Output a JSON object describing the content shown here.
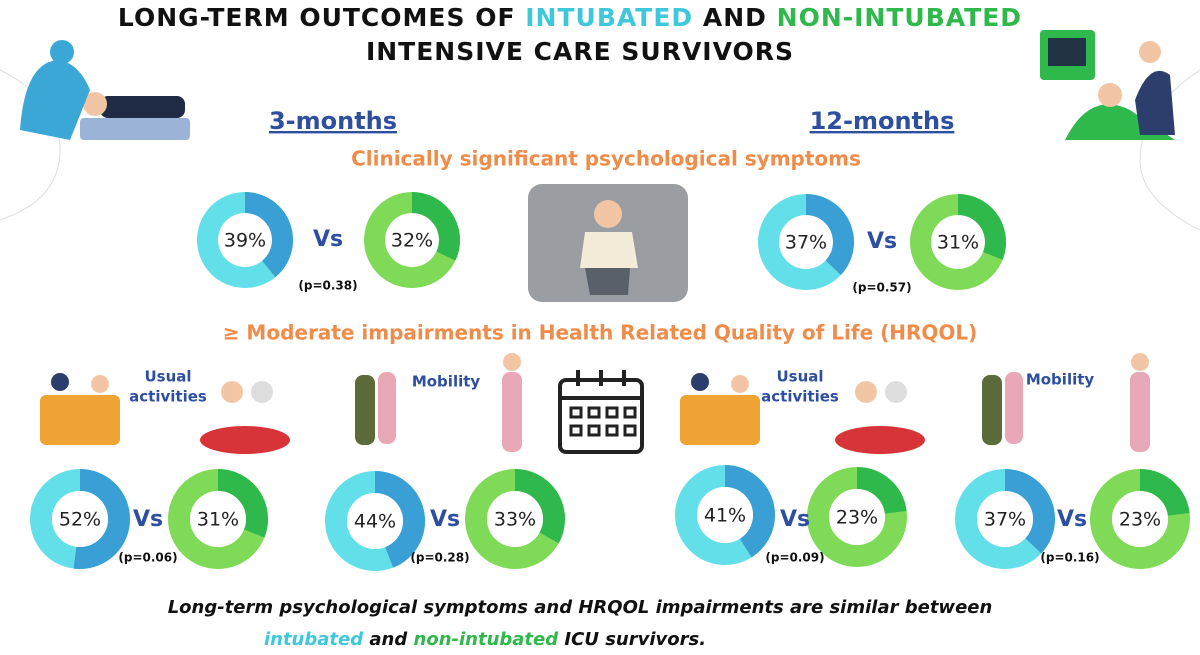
{
  "title": {
    "line1": [
      "LONG-TERM OUTCOMES OF",
      "INTUBATED",
      "AND",
      "NON-INTUBATED"
    ],
    "line2": "INTENSIVE CARE SURVIVORS"
  },
  "periods": [
    "3-months",
    "12-months"
  ],
  "colors": {
    "intubated_track": "#63dfe9",
    "intubated_arc": "#3a9fd4",
    "non_intubated_track": "#7fda57",
    "non_intubated_arc": "#2fb84b"
  },
  "psych": {
    "heading": "Clinically significant psychological symptoms",
    "comparisons": [
      {
        "intubated": {
          "value": 39,
          "label": "39%"
        },
        "vs": "Vs",
        "non_intubated": {
          "value": 32,
          "label": "32%"
        },
        "p": "(p=0.38)"
      },
      {
        "intubated": {
          "value": 37,
          "label": "37%"
        },
        "vs": "Vs",
        "non_intubated": {
          "value": 31,
          "label": "31%"
        },
        "p": "(p=0.57)"
      }
    ]
  },
  "hrqol": {
    "heading": "≥ Moderate impairments in Health Related Quality of Life (HRQOL)",
    "comparisons": [
      {
        "domain": [
          "Usual",
          "activities"
        ],
        "intubated": {
          "value": 52,
          "label": "52%"
        },
        "vs": "Vs",
        "non_intubated": {
          "value": 31,
          "label": "31%"
        },
        "p": "(p=0.06)"
      },
      {
        "domain": [
          "Mobility"
        ],
        "intubated": {
          "value": 44,
          "label": "44%"
        },
        "vs": "Vs",
        "non_intubated": {
          "value": 33,
          "label": "33%"
        },
        "p": "(p=0.28)"
      },
      {
        "domain": [
          "Usual",
          "activities"
        ],
        "intubated": {
          "value": 41,
          "label": "41%"
        },
        "vs": "Vs",
        "non_intubated": {
          "value": 23,
          "label": "23%"
        },
        "p": "(p=0.09)"
      },
      {
        "domain": [
          "Mobility"
        ],
        "intubated": {
          "value": 37,
          "label": "37%"
        },
        "vs": "Vs",
        "non_intubated": {
          "value": 23,
          "label": "23%"
        },
        "p": "(p=0.16)"
      }
    ]
  },
  "footer": {
    "line1": "Long-term psychological symptoms and HRQOL impairments are similar between",
    "line2": [
      "intubated",
      "and",
      "non-intubated",
      "ICU survivors."
    ]
  }
}
